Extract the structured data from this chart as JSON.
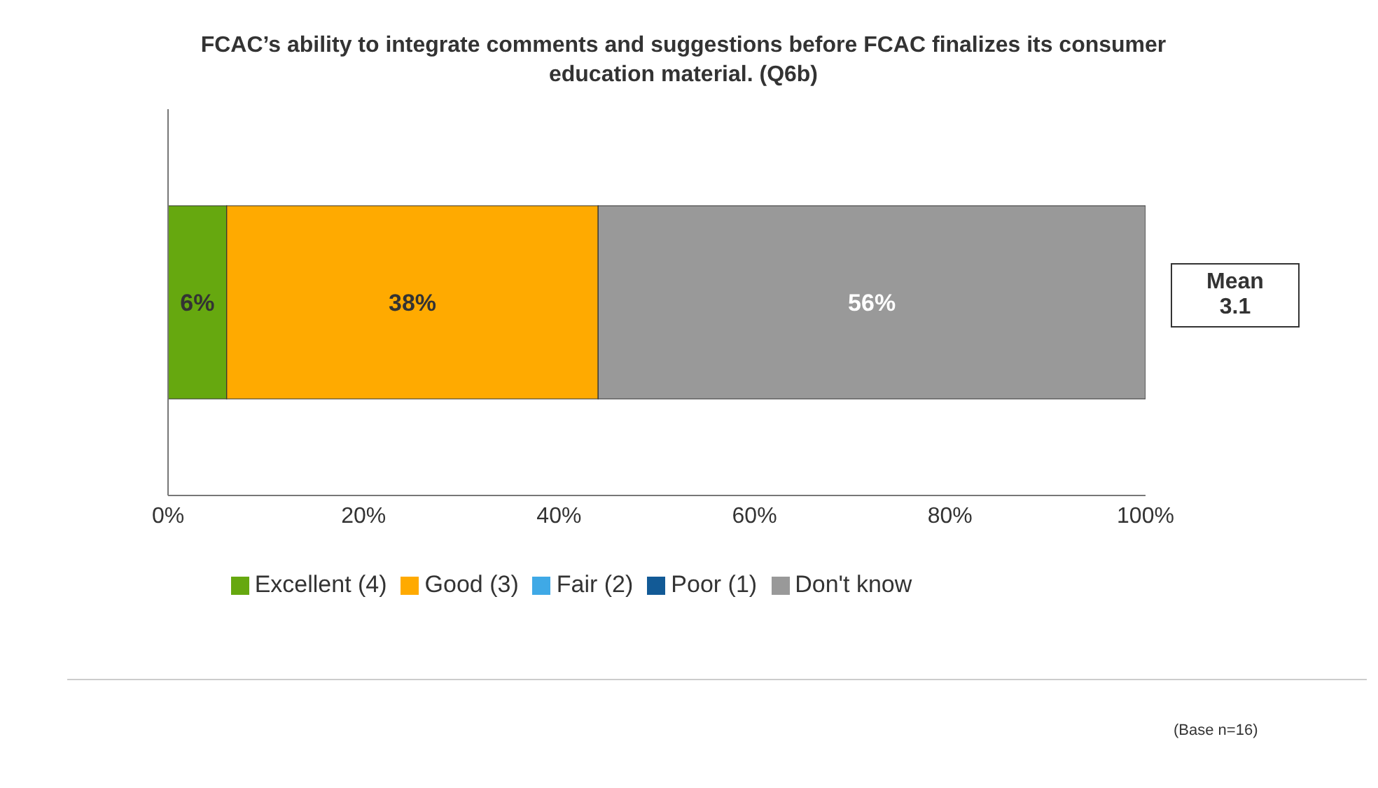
{
  "chart_data": {
    "type": "bar",
    "orientation": "horizontal",
    "stacked": true,
    "title": "FCAC’s ability to integrate comments and suggestions before FCAC finalizes its consumer education material. (Q6b)",
    "categories": [
      null
    ],
    "series": [
      {
        "name": "Excellent (4)",
        "color": "#66a80f",
        "values": [
          6
        ],
        "value_labels": [
          "6%"
        ]
      },
      {
        "name": "Good (3)",
        "color": "#ffaa00",
        "values": [
          38
        ],
        "value_labels": [
          "38%"
        ]
      },
      {
        "name": "Fair (2)",
        "color": "#3fa9e6",
        "values": [
          0
        ],
        "value_labels": [
          null
        ]
      },
      {
        "name": "Poor (1)",
        "color": "#125a96",
        "values": [
          0
        ],
        "value_labels": [
          null
        ]
      },
      {
        "name": "Don't  know",
        "color": "#999999",
        "values": [
          56
        ],
        "value_labels": [
          "56%"
        ]
      }
    ],
    "xlim": [
      0,
      100
    ],
    "xticks": [
      {
        "value": 0,
        "label": "0%"
      },
      {
        "value": 20,
        "label": "20%"
      },
      {
        "value": 40,
        "label": "40%"
      },
      {
        "value": 60,
        "label": "60%"
      },
      {
        "value": 80,
        "label": "80%"
      },
      {
        "value": 100,
        "label": "100%"
      }
    ],
    "grid": false,
    "legend": "bottom",
    "annotations": [
      "Mean\n3.1",
      "(Base n=16)"
    ]
  }
}
